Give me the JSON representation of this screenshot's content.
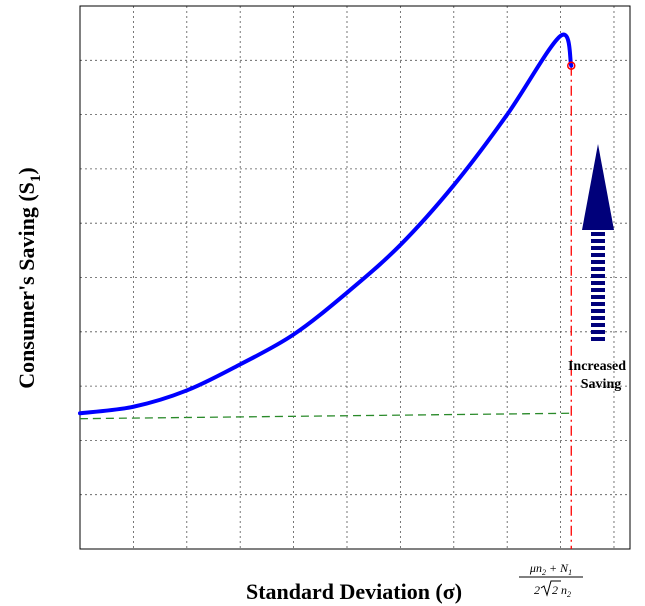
{
  "chart_data": {
    "type": "line",
    "xlabel": "Standard Deviation (σ)",
    "ylabel": {
      "main": "Consumer's Saving (S",
      "sub": "1",
      "close": ")"
    },
    "xlim": [
      0,
      10.3
    ],
    "ylim": [
      0,
      10
    ],
    "grid": true,
    "ticks_labeled": false,
    "series": [
      {
        "color": "#0000ff",
        "x": [
          0,
          1,
          2,
          3,
          4,
          5,
          6,
          7,
          8,
          9,
          9.2
        ],
        "y": [
          2.5,
          2.62,
          2.92,
          3.4,
          3.95,
          4.72,
          5.6,
          6.7,
          8.0,
          9.45,
          8.9
        ]
      },
      {
        "color": "#2a8a2a",
        "dashed": true,
        "x": [
          0,
          9.2
        ],
        "y": [
          2.4,
          2.5
        ]
      }
    ],
    "end_marker": {
      "x": 9.2,
      "y": 8.9,
      "color": "#ff0000"
    },
    "vline": {
      "x": 9.2,
      "color": "#ff0000",
      "style": "dash-dot"
    },
    "x_tick_formula": {
      "num_mu": "μn",
      "num_mu_sub": "2",
      "num_plus": " + N",
      "num_n_sub": "1",
      "den_pre": "2",
      "den_root": "2",
      "den_n": "n",
      "den_n_sub": "2"
    },
    "annotation": {
      "line1": "Increased",
      "line2": "Saving"
    },
    "arrow": {
      "color": "#00007a",
      "direction": "up"
    }
  }
}
